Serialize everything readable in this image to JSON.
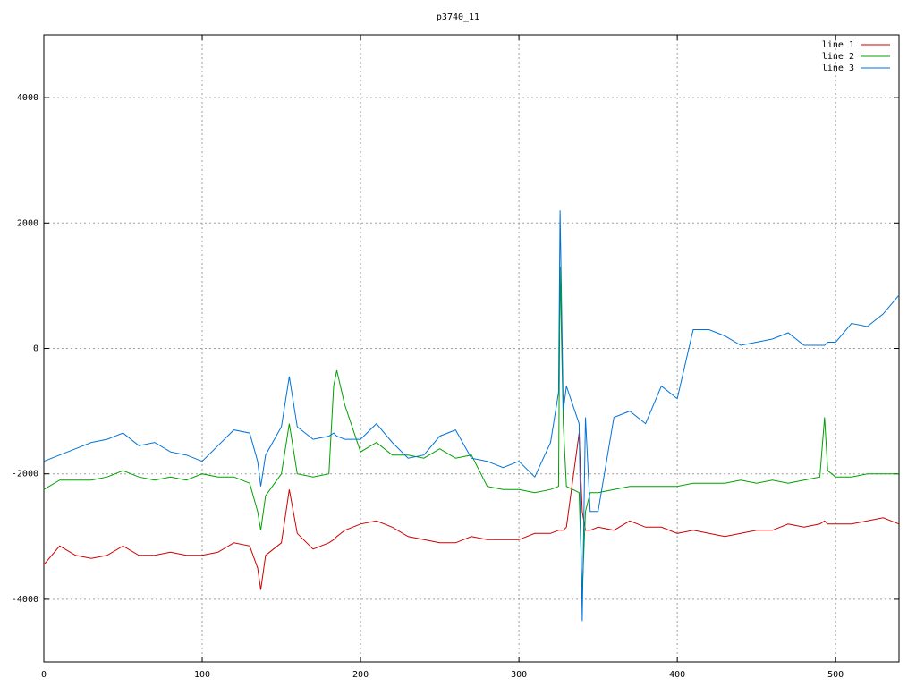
{
  "chart_data": {
    "type": "line",
    "title": "p3740_11",
    "x": [
      0,
      10,
      20,
      30,
      40,
      50,
      60,
      70,
      80,
      90,
      100,
      110,
      120,
      130,
      135,
      137,
      140,
      150,
      155,
      160,
      170,
      180,
      183,
      185,
      190,
      200,
      210,
      220,
      230,
      240,
      250,
      260,
      270,
      280,
      290,
      300,
      310,
      320,
      325,
      326,
      328,
      330,
      338,
      340,
      342,
      345,
      350,
      360,
      370,
      380,
      390,
      400,
      410,
      420,
      430,
      440,
      450,
      460,
      470,
      480,
      490,
      493,
      495,
      500,
      510,
      520,
      530,
      540
    ],
    "series": [
      {
        "name": "line 1",
        "color": "#cc0000",
        "values": [
          -3450,
          -3150,
          -3300,
          -3350,
          -3300,
          -3150,
          -3300,
          -3300,
          -3250,
          -3300,
          -3300,
          -3250,
          -3100,
          -3150,
          -3500,
          -3850,
          -3300,
          -3100,
          -2250,
          -2950,
          -3200,
          -3100,
          -3050,
          -3000,
          -2900,
          -2800,
          -2750,
          -2850,
          -3000,
          -3050,
          -3100,
          -3100,
          -3000,
          -3050,
          -3050,
          -3050,
          -2950,
          -2950,
          -2900,
          -2900,
          -2900,
          -2850,
          -1350,
          -2600,
          -2900,
          -2900,
          -2850,
          -2900,
          -2750,
          -2850,
          -2850,
          -2950,
          -2900,
          -2950,
          -3000,
          -2950,
          -2900,
          -2900,
          -2800,
          -2850,
          -2800,
          -2750,
          -2800,
          -2800,
          -2800,
          -2750,
          -2700,
          -2800
        ]
      },
      {
        "name": "line 2",
        "color": "#00a000",
        "values": [
          -2250,
          -2100,
          -2100,
          -2100,
          -2050,
          -1950,
          -2050,
          -2100,
          -2050,
          -2100,
          -2000,
          -2050,
          -2050,
          -2150,
          -2600,
          -2900,
          -2350,
          -2000,
          -1200,
          -2000,
          -2050,
          -2000,
          -600,
          -350,
          -900,
          -1650,
          -1500,
          -1700,
          -1700,
          -1750,
          -1600,
          -1750,
          -1700,
          -2200,
          -2250,
          -2250,
          -2300,
          -2250,
          -2200,
          1300,
          -1200,
          -2200,
          -2300,
          -3900,
          -2600,
          -2300,
          -2300,
          -2250,
          -2200,
          -2200,
          -2200,
          -2200,
          -2150,
          -2150,
          -2150,
          -2100,
          -2150,
          -2100,
          -2150,
          -2100,
          -2050,
          -1100,
          -1950,
          -2050,
          -2050,
          -2000,
          -2000,
          -2000
        ]
      },
      {
        "name": "line 3",
        "color": "#0072d8",
        "values": [
          -1800,
          -1700,
          -1600,
          -1500,
          -1450,
          -1350,
          -1550,
          -1500,
          -1650,
          -1700,
          -1800,
          -1550,
          -1300,
          -1350,
          -1800,
          -2200,
          -1700,
          -1250,
          -450,
          -1250,
          -1450,
          -1400,
          -1350,
          -1400,
          -1450,
          -1450,
          -1200,
          -1500,
          -1750,
          -1700,
          -1400,
          -1300,
          -1750,
          -1800,
          -1900,
          -1800,
          -2050,
          -1500,
          -700,
          2200,
          -1000,
          -600,
          -1200,
          -4350,
          -1100,
          -2600,
          -2600,
          -1100,
          -1000,
          -1200,
          -600,
          -800,
          300,
          300,
          200,
          50,
          100,
          150,
          250,
          50,
          50,
          50,
          100,
          100,
          400,
          350,
          550,
          850
        ]
      }
    ],
    "xlim": [
      0,
      540
    ],
    "ylim": [
      -5000,
      5000
    ],
    "xticks": [
      0,
      100,
      200,
      300,
      400,
      500
    ],
    "yticks": [
      -4000,
      -2000,
      0,
      2000,
      4000
    ],
    "grid": true,
    "legend": "top-right"
  }
}
